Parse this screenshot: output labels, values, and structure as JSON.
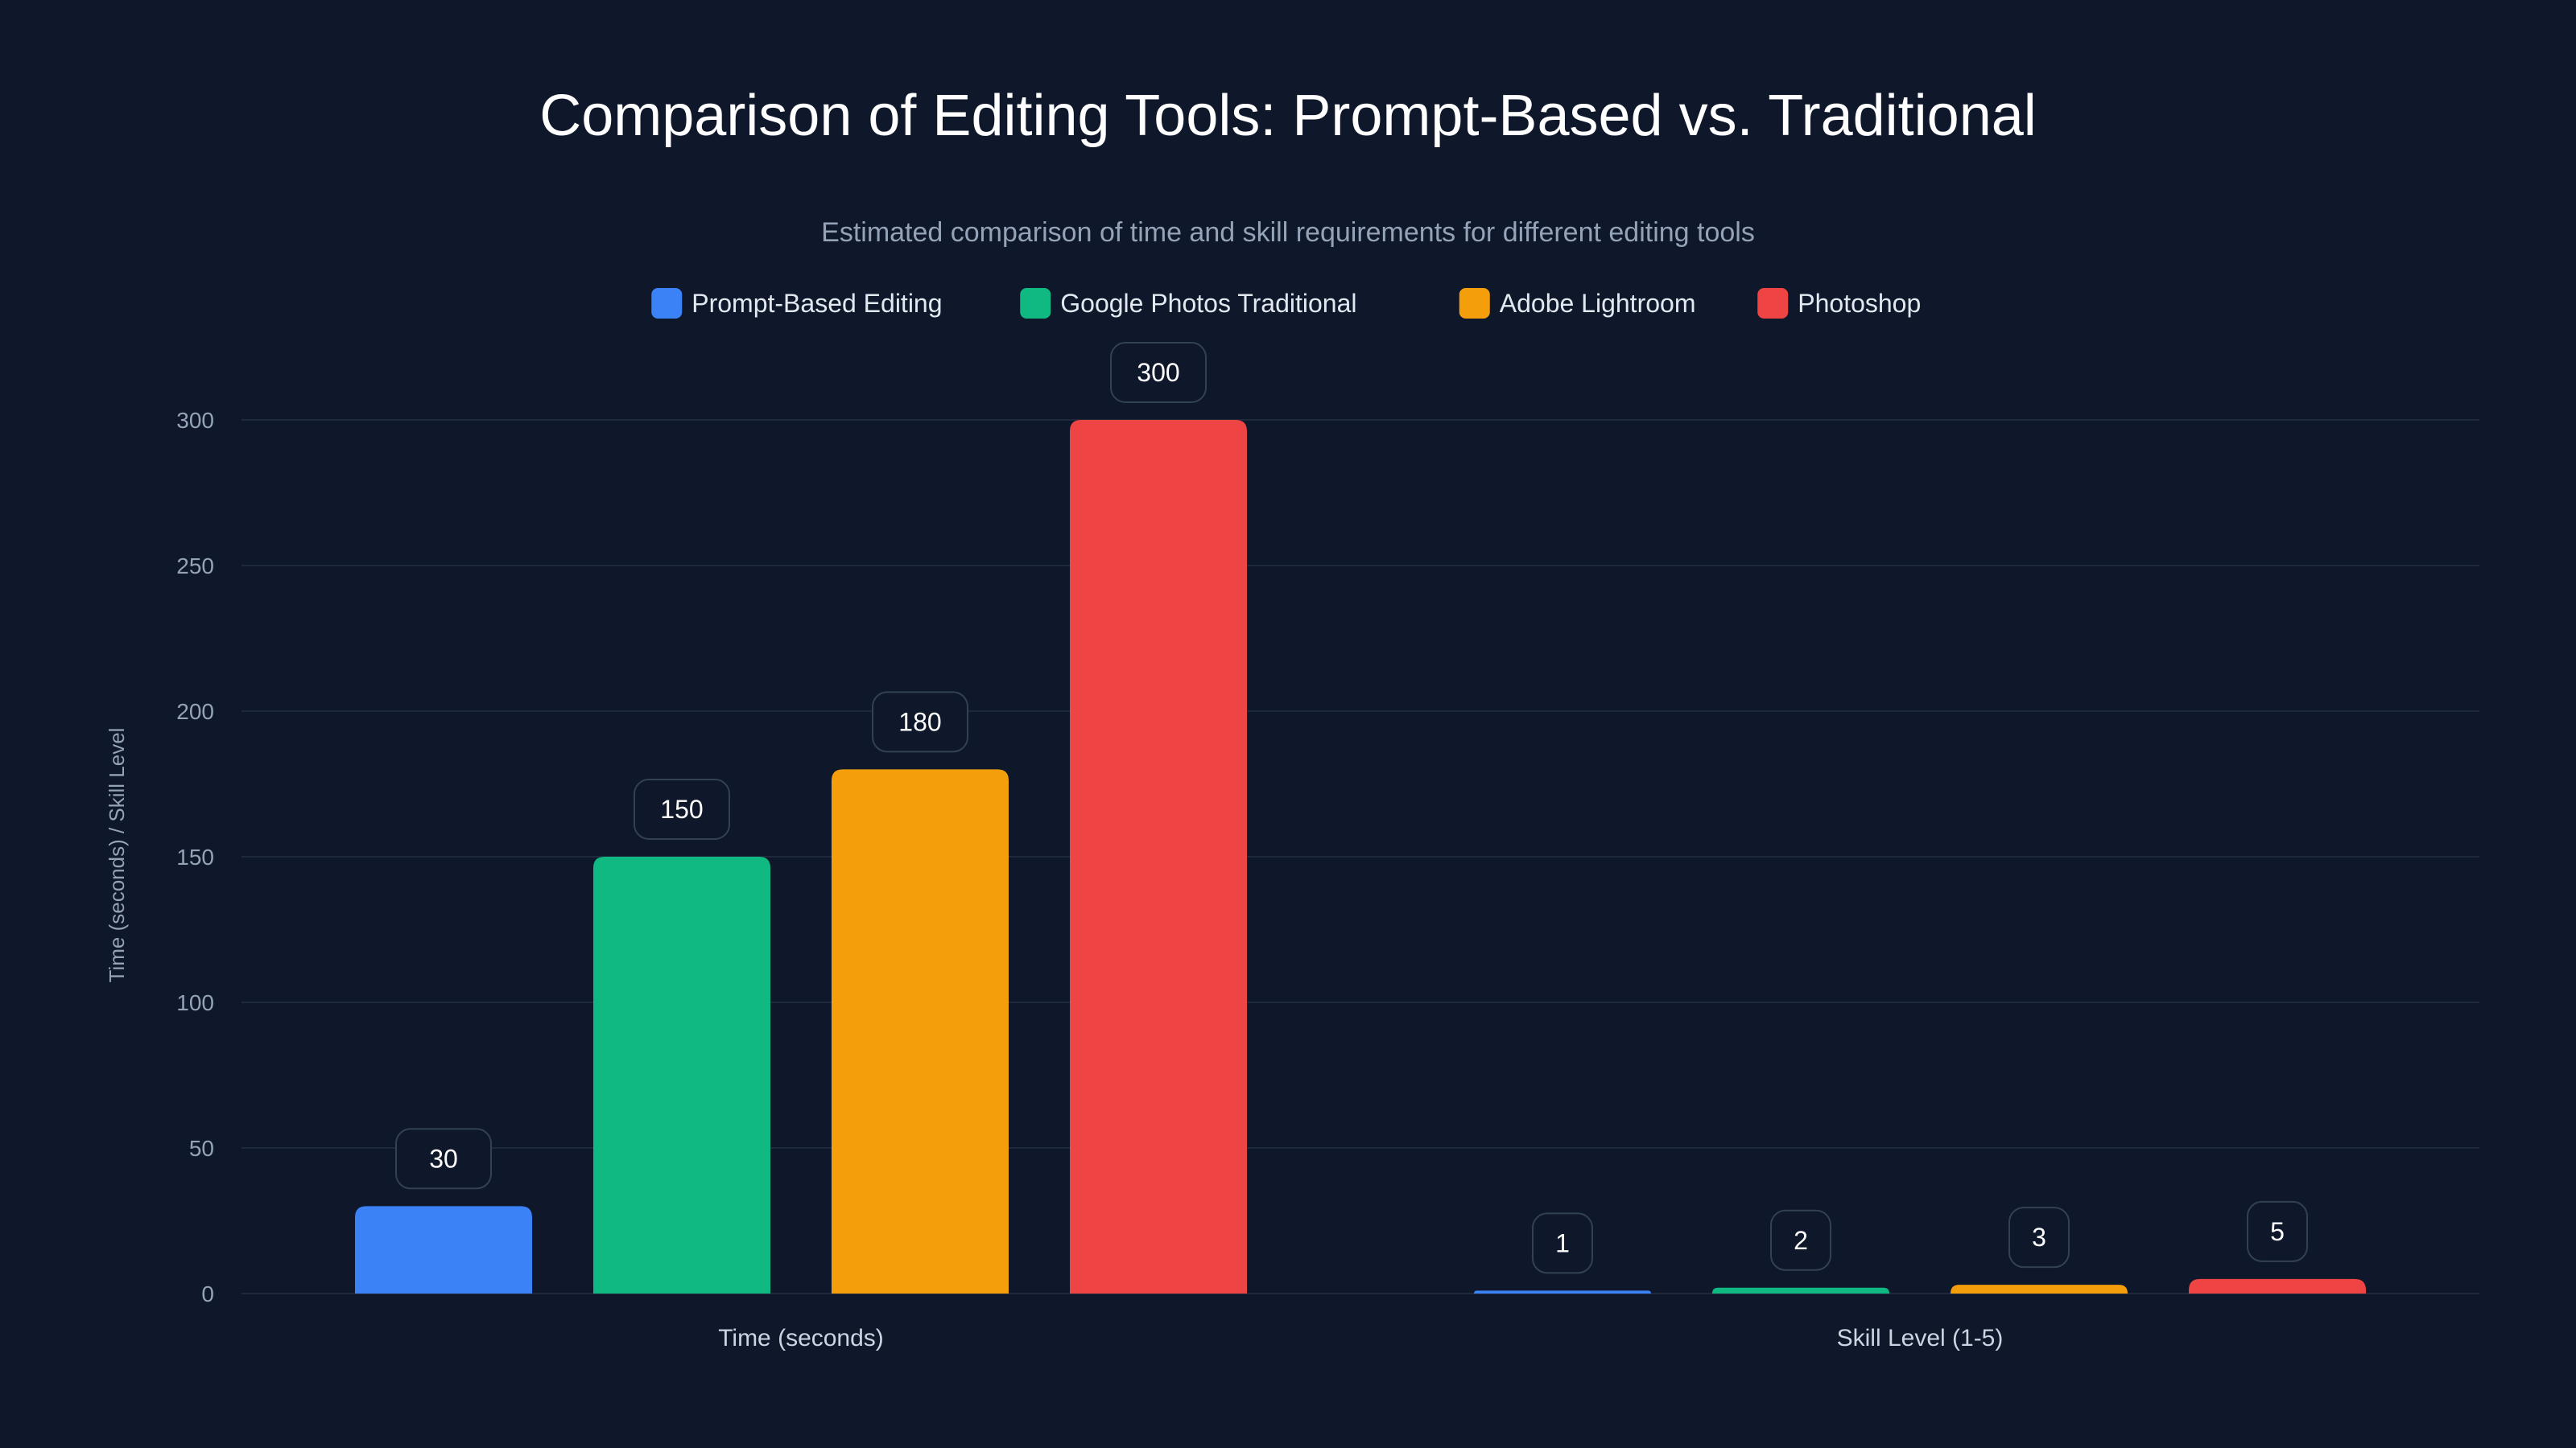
{
  "chart_data": {
    "type": "bar",
    "title": "Comparison of Editing Tools: Prompt-Based vs. Traditional",
    "subtitle": "Estimated comparison of time and skill requirements for different editing tools",
    "xlabel": "",
    "ylabel": "Time (seconds) / Skill Level",
    "ylim": [
      0,
      300
    ],
    "yticks": [
      0,
      50,
      100,
      150,
      200,
      250,
      300
    ],
    "grid": true,
    "legend_position": "top-center",
    "categories": [
      "Time (seconds)",
      "Skill Level (1-5)"
    ],
    "series": [
      {
        "name": "Prompt-Based Editing",
        "color": "#3b82f6",
        "values": [
          30,
          1
        ]
      },
      {
        "name": "Google Photos Traditional",
        "color": "#10b981",
        "values": [
          150,
          2
        ]
      },
      {
        "name": "Adobe Lightroom",
        "color": "#f59e0b",
        "values": [
          180,
          3
        ]
      },
      {
        "name": "Photoshop",
        "color": "#ef4444",
        "values": [
          300,
          5
        ]
      }
    ]
  }
}
